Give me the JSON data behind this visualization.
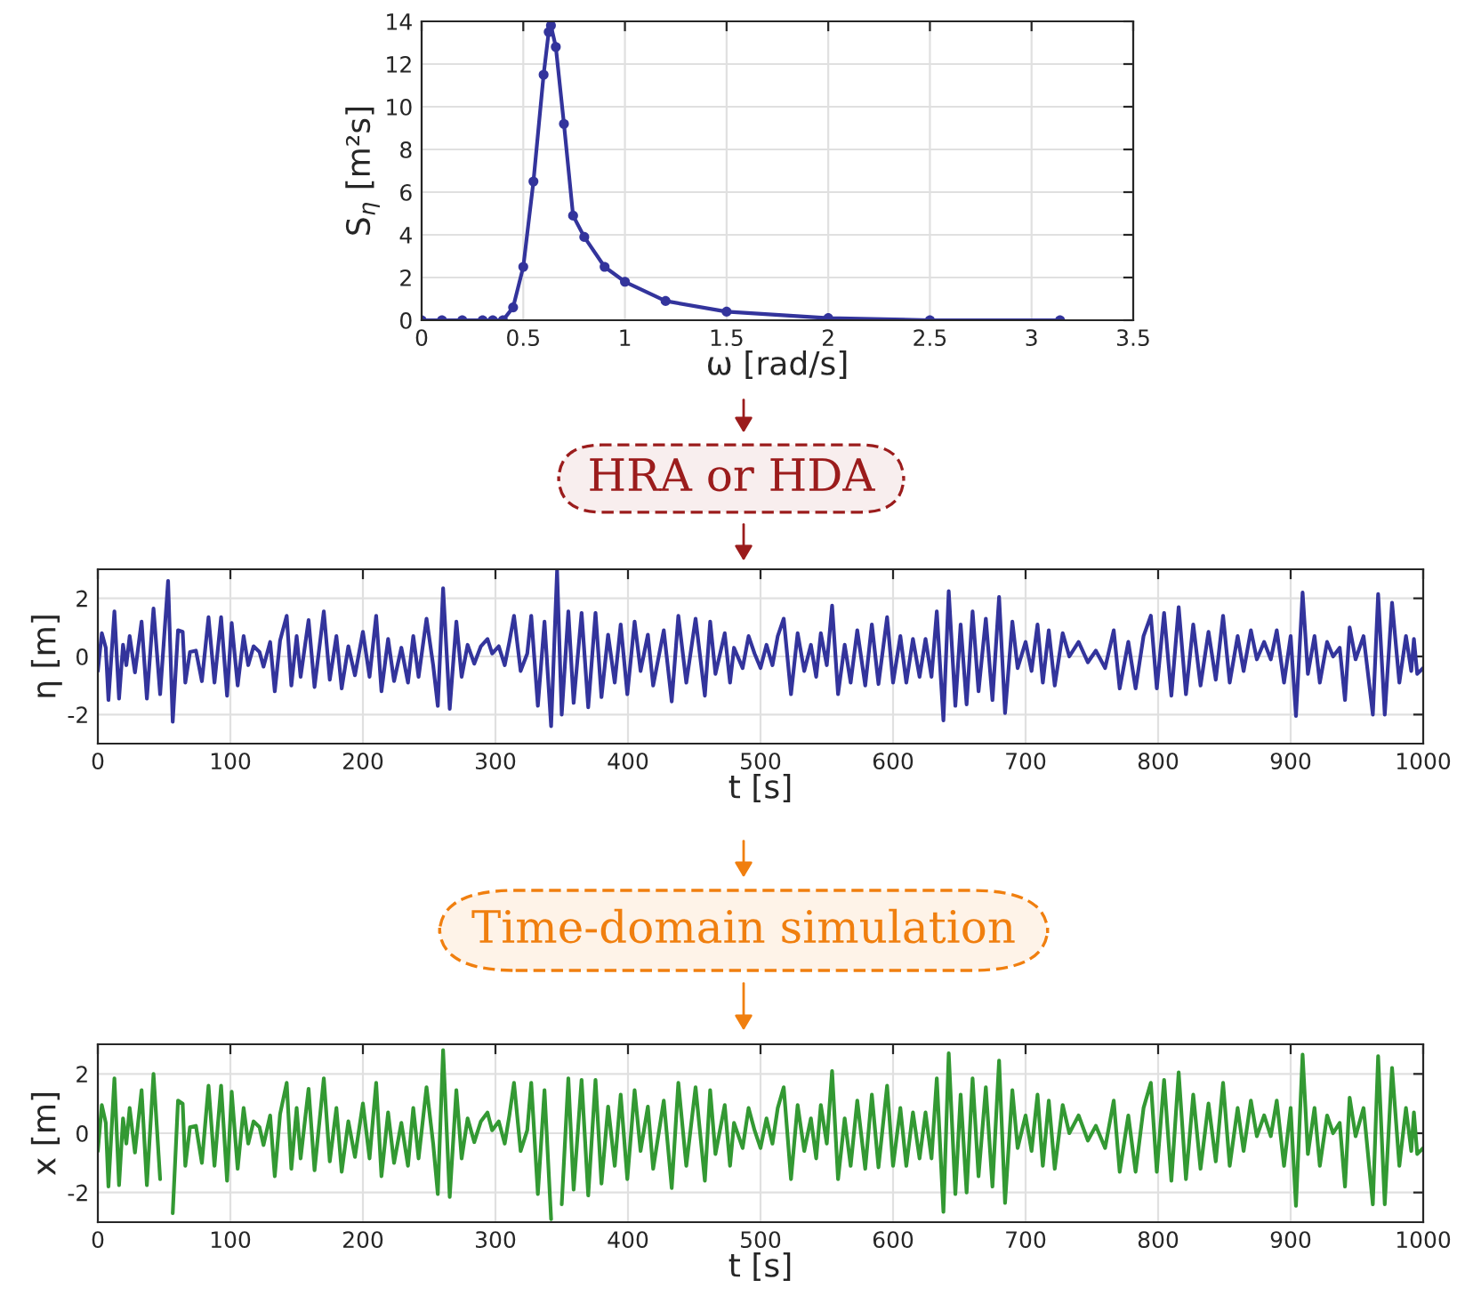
{
  "chart_data": [
    {
      "type": "line",
      "xlabel": "ω [rad/s]",
      "ylabel": "S$_{η}$ [m²s]",
      "xlim": [
        0,
        3.5
      ],
      "xticks": [
        0,
        0.5,
        1,
        1.5,
        2,
        2.5,
        3,
        3.5
      ],
      "ylim": [
        0,
        14
      ],
      "yticks": [
        0,
        2,
        4,
        6,
        8,
        10,
        12,
        14
      ],
      "grid": true,
      "marker": "circle",
      "x": [
        0,
        0.1,
        0.2,
        0.3,
        0.35,
        0.4,
        0.45,
        0.5,
        0.55,
        0.6,
        0.625,
        0.636,
        0.66,
        0.7,
        0.745,
        0.8,
        0.9,
        1.0,
        1.2,
        1.5,
        2.0,
        2.5,
        3.14
      ],
      "series": [
        {
          "color": "#33349c",
          "values": [
            0,
            0,
            0,
            0,
            0,
            0,
            0.6,
            2.5,
            6.5,
            11.5,
            13.5,
            13.8,
            12.8,
            9.2,
            4.9,
            3.9,
            2.5,
            1.8,
            0.9,
            0.4,
            0.1,
            0,
            0
          ]
        }
      ]
    },
    {
      "type": "other",
      "annotations": [
        "HRA or HDA"
      ]
    },
    {
      "type": "line",
      "xlabel": "t [s]",
      "ylabel": "η [m]",
      "xlim": [
        0,
        1000
      ],
      "xticks": [
        0,
        100,
        200,
        300,
        400,
        500,
        600,
        700,
        800,
        900,
        1000
      ],
      "ylim": [
        -3,
        3
      ],
      "yticks": [
        -2,
        0,
        2
      ],
      "grid": true,
      "x": [
        0,
        3,
        6,
        8,
        12.5,
        16,
        19,
        21.5,
        24,
        28,
        33,
        37,
        42,
        47,
        53,
        56.5,
        60.5,
        64,
        66,
        69.5,
        74,
        78.5,
        83.5,
        88,
        93,
        97.5,
        101,
        105.5,
        110,
        113.5,
        117.5,
        122,
        125,
        130,
        133.5,
        137.5,
        142.5,
        146,
        150,
        153,
        159,
        163.5,
        170.5,
        175,
        180,
        184,
        189,
        194,
        200,
        205,
        210,
        214,
        219,
        223.5,
        229,
        234,
        238,
        242,
        248,
        253,
        256.5,
        260.5,
        265.5,
        270.5,
        274.5,
        279,
        284,
        289,
        294,
        297.5,
        302.5,
        307,
        310.5,
        314,
        319,
        324,
        327,
        332,
        337,
        342,
        346.5,
        350,
        355,
        359,
        365,
        370,
        375.5,
        380,
        385,
        390,
        394.5,
        399.5,
        405,
        409.5,
        415,
        419,
        427,
        433,
        438,
        444,
        451,
        458,
        462,
        466,
        473,
        477,
        480,
        486.5,
        491,
        495.5,
        500,
        504.5,
        509,
        513,
        517.5,
        523,
        528,
        533,
        538,
        542,
        545.5,
        550,
        554,
        558.5,
        563.5,
        568,
        573,
        579,
        584,
        589,
        595.5,
        600,
        605.5,
        610,
        615,
        620,
        624.5,
        629,
        633,
        638,
        642,
        647,
        651,
        655.5,
        660,
        664.5,
        670,
        675,
        680,
        684.5,
        690,
        694,
        700,
        704.5,
        709,
        713,
        717.5,
        722,
        728,
        733,
        740,
        747,
        753,
        760,
        766.5,
        771,
        777.5,
        783,
        789,
        794.5,
        799,
        804.5,
        810,
        815.5,
        821,
        826.5,
        832,
        838,
        843.5,
        849,
        854,
        860,
        864.5,
        870,
        874.5,
        880,
        885,
        889.5,
        895,
        900,
        904,
        909,
        913,
        918,
        922,
        927.5,
        932,
        937,
        941,
        944.5,
        949,
        955,
        962,
        966,
        971,
        976.5,
        982,
        987,
        991,
        993,
        995.5,
        1000
      ],
      "series": [
        {
          "color": "#33349c",
          "values": [
            -0.5,
            0.8,
            0.3,
            -1.5,
            1.55,
            -1.45,
            0.4,
            -0.3,
            0.7,
            -0.55,
            1.2,
            -1.45,
            1.65,
            -1.3,
            2.6,
            -2.25,
            0.9,
            0.85,
            -0.9,
            0.15,
            0.2,
            -0.85,
            1.35,
            -0.9,
            1.35,
            -1.35,
            1.15,
            -1.0,
            0.7,
            -0.3,
            0.35,
            0.15,
            -0.35,
            0.5,
            -1.2,
            0.55,
            1.4,
            -1.0,
            0.7,
            -0.7,
            1.25,
            -1.05,
            1.55,
            -0.8,
            0.7,
            -1.1,
            0.35,
            -0.65,
            0.85,
            -0.7,
            1.4,
            -1.2,
            0.6,
            -0.85,
            0.3,
            -0.9,
            0.7,
            -0.7,
            1.3,
            -0.3,
            -1.7,
            2.35,
            -1.8,
            1.2,
            -0.7,
            0.4,
            -0.25,
            0.35,
            0.6,
            0.1,
            0.35,
            -0.3,
            0.5,
            1.4,
            -0.5,
            0.1,
            1.4,
            -1.7,
            1.2,
            -2.4,
            2.95,
            -2.0,
            1.55,
            -1.6,
            1.5,
            -1.75,
            1.5,
            -1.4,
            0.75,
            -0.9,
            1.1,
            -1.3,
            1.2,
            -0.5,
            0.75,
            -1.0,
            0.9,
            -1.55,
            1.4,
            -0.9,
            1.3,
            -1.35,
            1.2,
            -0.6,
            0.8,
            -0.9,
            0.3,
            -0.4,
            0.7,
            0.1,
            -0.4,
            0.4,
            -0.3,
            0.7,
            1.3,
            -1.3,
            0.8,
            -0.5,
            0.4,
            -0.7,
            0.8,
            -0.3,
            1.75,
            -1.3,
            0.4,
            -0.9,
            0.9,
            -1.0,
            1.1,
            -0.95,
            1.35,
            -0.9,
            0.7,
            -0.9,
            0.6,
            -0.7,
            0.6,
            -0.7,
            1.55,
            -2.2,
            2.25,
            -1.7,
            1.1,
            -1.65,
            1.55,
            -1.2,
            1.3,
            -1.5,
            2.05,
            -1.95,
            1.2,
            -0.4,
            0.5,
            -0.5,
            1.1,
            -0.9,
            0.9,
            -1.0,
            0.8,
            0.0,
            0.5,
            -0.2,
            0.2,
            -0.4,
            0.9,
            -1.1,
            0.5,
            -1.1,
            0.7,
            1.4,
            -1.1,
            1.5,
            -1.35,
            1.7,
            -1.3,
            1.1,
            -1.0,
            0.85,
            -0.8,
            1.4,
            -0.9,
            0.7,
            -0.5,
            0.9,
            -0.1,
            0.5,
            -0.1,
            0.9,
            -0.9,
            0.7,
            -2.05,
            2.2,
            -0.6,
            0.7,
            -0.9,
            0.5,
            0.0,
            0.3,
            -1.5,
            1.0,
            -0.1,
            0.7,
            -2.0,
            2.15,
            -2.0,
            1.85,
            -0.9,
            0.7,
            -0.5,
            0.6,
            -0.6,
            -0.4
          ]
        }
      ]
    },
    {
      "type": "other",
      "annotations": [
        "Time-domain simulation"
      ]
    },
    {
      "type": "line",
      "xlabel": "t [s]",
      "ylabel": "x [m]",
      "xlim": [
        0,
        1000
      ],
      "xticks": [
        0,
        100,
        200,
        300,
        400,
        500,
        600,
        700,
        800,
        900,
        1000
      ],
      "ylim": [
        -3,
        3
      ],
      "yticks": [
        -2,
        0,
        2
      ],
      "grid": true,
      "x": [
        0,
        3,
        6,
        8,
        12.5,
        16,
        19,
        21.5,
        24,
        28,
        33,
        37,
        42,
        47,
        53,
        56.5,
        60.5,
        64,
        66,
        69.5,
        74,
        78.5,
        83.5,
        88,
        93,
        97.5,
        101,
        105.5,
        110,
        113.5,
        117.5,
        122,
        125,
        130,
        133.5,
        137.5,
        142.5,
        146,
        150,
        153,
        159,
        163.5,
        170.5,
        175,
        180,
        184,
        189,
        194,
        200,
        205,
        210,
        214,
        219,
        223.5,
        229,
        234,
        238,
        242,
        248,
        253,
        256.5,
        260.5,
        265.5,
        270.5,
        274.5,
        279,
        284,
        289,
        294,
        297.5,
        302.5,
        307,
        310.5,
        314,
        319,
        324,
        327,
        332,
        337,
        342,
        346.5,
        350,
        355,
        359,
        365,
        370,
        375.5,
        380,
        385,
        390,
        394.5,
        399.5,
        405,
        409.5,
        415,
        419,
        427,
        433,
        438,
        444,
        451,
        458,
        462,
        466,
        473,
        477,
        480,
        486.5,
        491,
        495.5,
        500,
        504.5,
        509,
        513,
        517.5,
        523,
        528,
        533,
        538,
        542,
        545.5,
        550,
        554,
        558.5,
        563.5,
        568,
        573,
        579,
        584,
        589,
        595.5,
        600,
        605.5,
        610,
        615,
        620,
        624.5,
        629,
        633,
        638,
        642,
        647,
        651,
        655.5,
        660,
        664.5,
        670,
        675,
        680,
        684.5,
        690,
        694,
        700,
        704.5,
        709,
        713,
        717.5,
        722,
        728,
        733,
        740,
        747,
        753,
        760,
        766.5,
        771,
        777.5,
        783,
        789,
        794.5,
        799,
        804.5,
        810,
        815.5,
        821,
        826.5,
        832,
        838,
        843.5,
        849,
        854,
        860,
        864.5,
        870,
        874.5,
        880,
        885,
        889.5,
        895,
        900,
        904,
        909,
        913,
        918,
        922,
        927.5,
        932,
        937,
        941,
        944.5,
        949,
        955,
        962,
        966,
        971,
        976.5,
        982,
        987,
        991,
        993,
        995.5,
        1000
      ],
      "series": [
        {
          "color": "#339933",
          "values": [
            -0.6,
            0.95,
            0.35,
            -1.8,
            1.85,
            -1.75,
            0.5,
            -0.35,
            0.85,
            -0.65,
            1.45,
            -1.75,
            2.0,
            -1.55,
            null,
            -2.7,
            1.1,
            1.0,
            -1.1,
            0.2,
            0.25,
            -1.0,
            1.6,
            -1.1,
            1.6,
            -1.6,
            1.4,
            -1.2,
            0.85,
            -0.35,
            0.4,
            0.2,
            -0.4,
            0.6,
            -1.45,
            0.65,
            1.7,
            -1.2,
            0.85,
            -0.85,
            1.5,
            -1.25,
            1.85,
            -0.95,
            0.85,
            -1.3,
            0.4,
            -0.8,
            1.0,
            -0.85,
            1.7,
            -1.45,
            0.7,
            -1.0,
            0.35,
            -1.1,
            0.85,
            -0.85,
            1.55,
            -0.35,
            -2.05,
            2.8,
            -2.15,
            1.45,
            -0.85,
            0.5,
            -0.3,
            0.4,
            0.7,
            0.1,
            0.4,
            -0.35,
            0.6,
            1.7,
            -0.6,
            0.1,
            1.7,
            -2.05,
            1.45,
            -2.9,
            null,
            -2.4,
            1.85,
            -1.9,
            1.8,
            -2.1,
            1.8,
            -1.7,
            0.9,
            -1.1,
            1.3,
            -1.55,
            1.45,
            -0.6,
            0.9,
            -1.2,
            1.1,
            -1.85,
            1.7,
            -1.1,
            1.55,
            -1.6,
            1.45,
            -0.7,
            0.95,
            -1.1,
            0.35,
            -0.5,
            0.85,
            0.1,
            -0.5,
            0.5,
            -0.35,
            0.85,
            1.55,
            -1.55,
            0.95,
            -0.6,
            0.5,
            -0.85,
            0.95,
            -0.35,
            2.1,
            -1.55,
            0.5,
            -1.1,
            1.1,
            -1.2,
            1.3,
            -1.15,
            1.6,
            -1.1,
            0.85,
            -1.1,
            0.7,
            -0.85,
            0.7,
            -0.85,
            1.85,
            -2.65,
            2.7,
            -2.05,
            1.3,
            -2.0,
            1.85,
            -1.45,
            1.55,
            -1.8,
            2.45,
            -2.35,
            1.45,
            -0.5,
            0.6,
            -0.6,
            1.3,
            -1.1,
            1.1,
            -1.2,
            0.95,
            0.0,
            0.6,
            -0.25,
            0.25,
            -0.5,
            1.1,
            -1.3,
            0.6,
            -1.3,
            0.85,
            1.7,
            -1.3,
            1.8,
            -1.6,
            2.05,
            -1.55,
            1.3,
            -1.2,
            1.0,
            -0.95,
            1.7,
            -1.1,
            0.85,
            -0.6,
            1.1,
            -0.1,
            0.6,
            -0.1,
            1.1,
            -1.1,
            0.85,
            -2.45,
            2.65,
            -0.7,
            0.85,
            -1.1,
            0.6,
            0.0,
            0.35,
            -1.8,
            1.2,
            -0.1,
            0.85,
            -2.4,
            2.6,
            -2.4,
            2.2,
            -1.1,
            0.85,
            -0.6,
            0.7,
            -0.7,
            -0.5
          ]
        }
      ]
    }
  ]
}
